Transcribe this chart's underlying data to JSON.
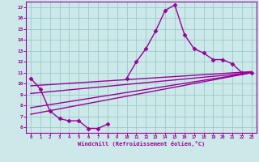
{
  "xlabel": "Windchill (Refroidissement éolien,°C)",
  "background_color": "#cce8e8",
  "line_color": "#990099",
  "grid_color": "#99cccc",
  "xlim": [
    -0.5,
    23.5
  ],
  "ylim": [
    5.5,
    17.5
  ],
  "xticks": [
    0,
    1,
    2,
    3,
    4,
    5,
    6,
    7,
    8,
    9,
    10,
    11,
    12,
    13,
    14,
    15,
    16,
    17,
    18,
    19,
    20,
    21,
    22,
    23
  ],
  "yticks": [
    6,
    7,
    8,
    9,
    10,
    11,
    12,
    13,
    14,
    15,
    16,
    17
  ],
  "line1_x": [
    0,
    1,
    2,
    3,
    4,
    5,
    6,
    7,
    8,
    9,
    10,
    11,
    12,
    13,
    14,
    15,
    16,
    17,
    18,
    19,
    20,
    21,
    22,
    23
  ],
  "line1_y": [
    10.5,
    9.5,
    7.5,
    6.8,
    6.6,
    6.6,
    5.9,
    5.9,
    6.3,
    null,
    10.5,
    12.0,
    13.2,
    14.8,
    16.7,
    17.2,
    14.5,
    13.2,
    12.8,
    12.2,
    12.2,
    11.8,
    11.0,
    11.0
  ],
  "line2_x": [
    0,
    23
  ],
  "line2_y": [
    9.8,
    11.1
  ],
  "line3_x": [
    0,
    23
  ],
  "line3_y": [
    9.1,
    11.0
  ],
  "line4_x": [
    0,
    23
  ],
  "line4_y": [
    7.8,
    11.0
  ],
  "line5_x": [
    0,
    23
  ],
  "line5_y": [
    7.2,
    11.0
  ],
  "marker": "D",
  "marker_size": 2.5,
  "line_width": 1.0
}
